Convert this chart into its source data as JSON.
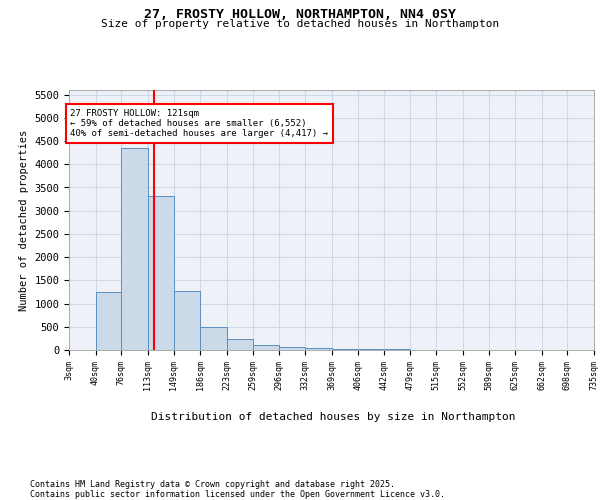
{
  "title1": "27, FROSTY HOLLOW, NORTHAMPTON, NN4 0SY",
  "title2": "Size of property relative to detached houses in Northampton",
  "xlabel": "Distribution of detached houses by size in Northampton",
  "ylabel": "Number of detached properties",
  "bin_edges": [
    3,
    40,
    76,
    113,
    149,
    186,
    223,
    259,
    296,
    332,
    369,
    406,
    442,
    479,
    515,
    552,
    589,
    625,
    662,
    698,
    735
  ],
  "bar_heights": [
    0,
    1255,
    4350,
    3310,
    1270,
    500,
    230,
    100,
    75,
    50,
    30,
    20,
    15,
    10,
    8,
    5,
    4,
    3,
    2,
    1
  ],
  "bar_facecolor": "#ccd9e8",
  "bar_edgecolor": "#5a8fc0",
  "red_line_x": 121,
  "annotation_text": "27 FROSTY HOLLOW: 121sqm\n← 59% of detached houses are smaller (6,552)\n40% of semi-detached houses are larger (4,417) →",
  "annotation_box_edgecolor": "red",
  "annotation_box_facecolor": "white",
  "ylim": [
    0,
    5600
  ],
  "yticks": [
    0,
    500,
    1000,
    1500,
    2000,
    2500,
    3000,
    3500,
    4000,
    4500,
    5000,
    5500
  ],
  "grid_color": "#d0d8e8",
  "bg_color": "#eef2f8",
  "footer1": "Contains HM Land Registry data © Crown copyright and database right 2025.",
  "footer2": "Contains public sector information licensed under the Open Government Licence v3.0."
}
